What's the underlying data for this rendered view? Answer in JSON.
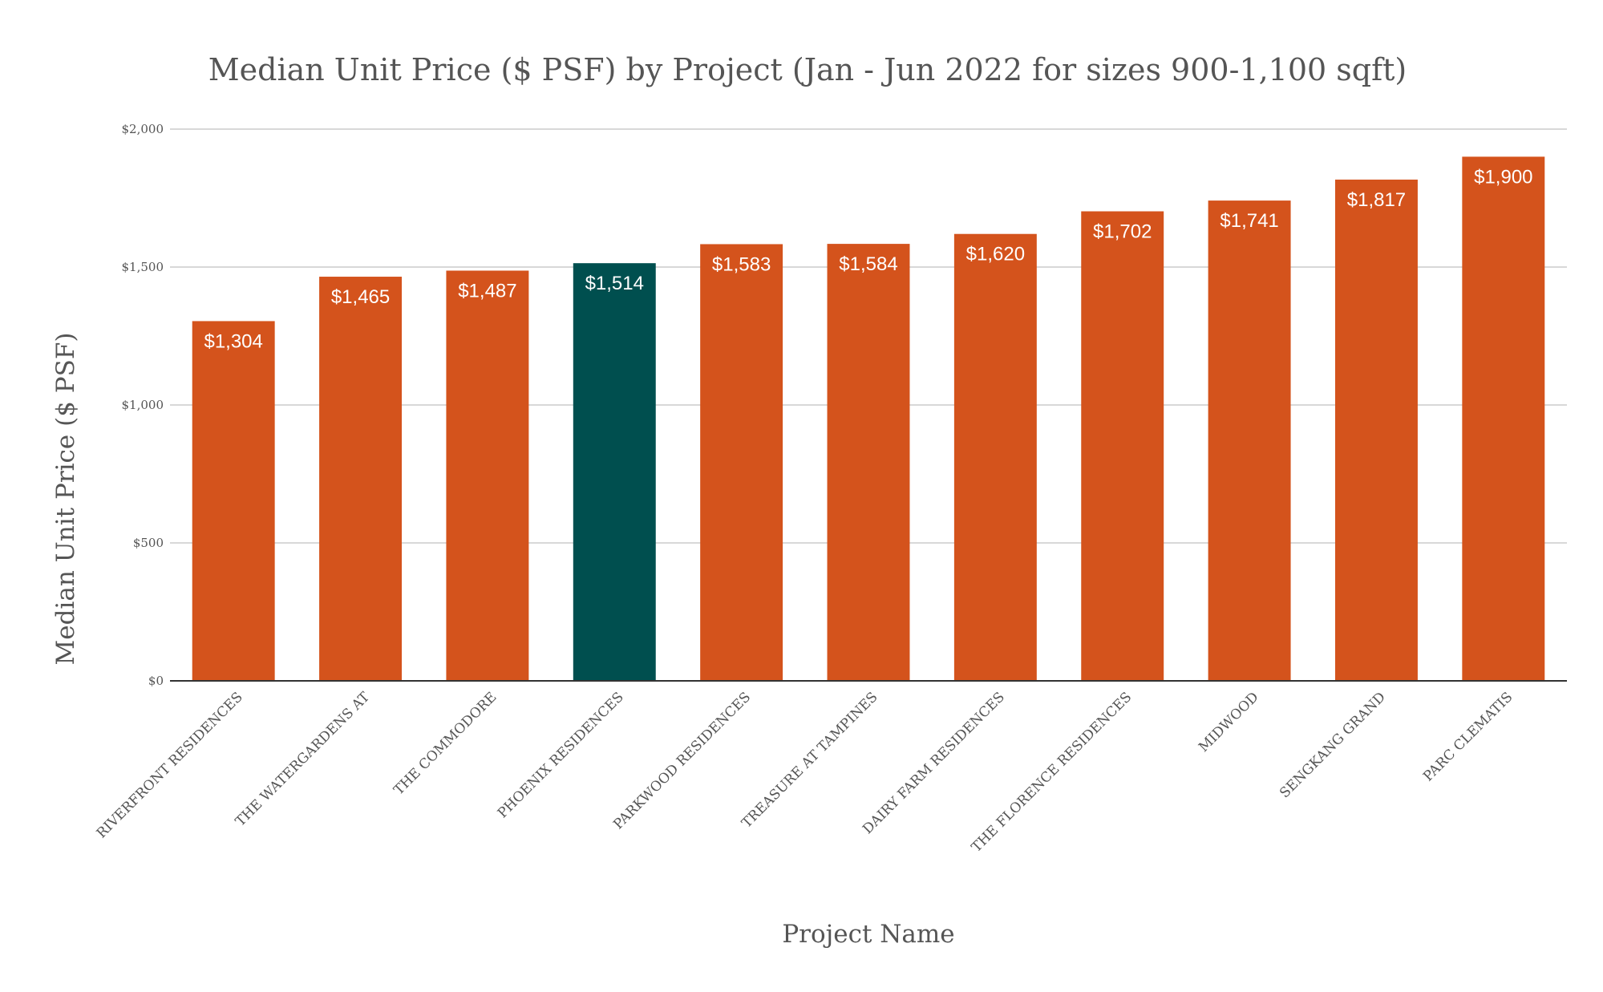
{
  "chart_data": {
    "type": "bar",
    "title": "Median Unit Price ($ PSF) by Project (Jan - Jun 2022 for sizes 900-1,100 sqft)",
    "xlabel": "Project Name",
    "ylabel": "Median Unit Price ($ PSF)",
    "ylim": [
      0,
      2000
    ],
    "yticks": [
      0,
      500,
      1000,
      1500,
      2000
    ],
    "ytick_labels": [
      "$0",
      "$500",
      "$1,000",
      "$1,500",
      "$2,000"
    ],
    "grid": true,
    "categories": [
      "RIVERFRONT RESIDENCES",
      "THE WATERGARDENS AT",
      "THE COMMODORE",
      "PHOENIX RESIDENCES",
      "PARKWOOD RESIDENCES",
      "TREASURE AT TAMPINES",
      "DAIRY FARM RESIDENCES",
      "THE FLORENCE RESIDENCES",
      "MIDWOOD",
      "SENGKANG GRAND",
      "PARC CLEMATIS"
    ],
    "values": [
      1304,
      1465,
      1487,
      1514,
      1583,
      1584,
      1620,
      1702,
      1741,
      1817,
      1900
    ],
    "data_labels": [
      "$1,304",
      "$1,465",
      "$1,487",
      "$1,514",
      "$1,583",
      "$1,584",
      "$1,620",
      "$1,702",
      "$1,741",
      "$1,817",
      "$1,900"
    ],
    "bar_colors": [
      "#d4531c",
      "#d4531c",
      "#d4531c",
      "#004f4f",
      "#d4531c",
      "#d4531c",
      "#d4531c",
      "#d4531c",
      "#d4531c",
      "#d4531c",
      "#d4531c"
    ]
  }
}
